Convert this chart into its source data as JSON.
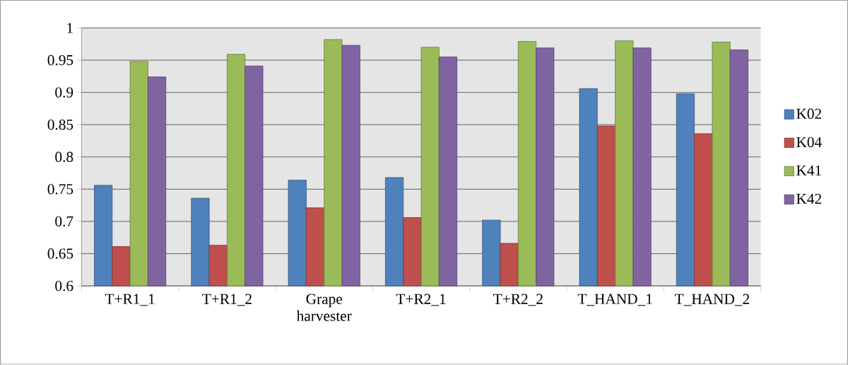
{
  "chart_data": {
    "type": "bar",
    "categories": [
      "T+R1_1",
      "T+R1_2",
      "Grape harvester",
      "T+R2_1",
      "T+R2_2",
      "T_HAND_1",
      "T_HAND_2"
    ],
    "series": [
      {
        "name": "K02",
        "color": "#4f81bd",
        "values": [
          0.756,
          0.736,
          0.764,
          0.768,
          0.702,
          0.906,
          0.898
        ]
      },
      {
        "name": "K04",
        "color": "#c0504d",
        "values": [
          0.661,
          0.663,
          0.721,
          0.706,
          0.666,
          0.848,
          0.836
        ]
      },
      {
        "name": "K41",
        "color": "#9bbb59",
        "values": [
          0.948,
          0.959,
          0.982,
          0.97,
          0.979,
          0.98,
          0.978
        ]
      },
      {
        "name": "K42",
        "color": "#8064a2",
        "values": [
          0.924,
          0.941,
          0.973,
          0.955,
          0.969,
          0.969,
          0.966
        ]
      }
    ],
    "ylim": [
      0.6,
      1
    ],
    "yticks": [
      0.6,
      0.65,
      0.7,
      0.75,
      0.8,
      0.85,
      0.9,
      0.95,
      1
    ],
    "grid": "y",
    "legend": "right"
  }
}
